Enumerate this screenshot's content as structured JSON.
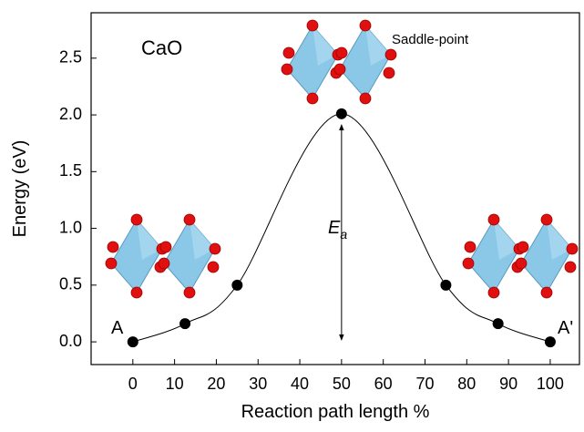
{
  "chart_data": {
    "type": "line",
    "x_label": "Reaction path length %",
    "y_label": "Energy (eV)",
    "x": [
      0,
      12.5,
      25,
      50,
      75,
      87.5,
      100
    ],
    "series": [
      {
        "color": "#000000",
        "values": [
          0,
          0.16,
          0.5,
          2.01,
          0.5,
          0.16,
          0
        ]
      }
    ],
    "xlim": [
      -10,
      107
    ],
    "ylim": [
      -0.2,
      2.9
    ],
    "xticks": [
      0,
      10,
      20,
      30,
      40,
      50,
      60,
      70,
      80,
      90,
      100
    ],
    "yticks": [
      {
        "value": 0,
        "label": "0.0"
      },
      {
        "value": 0.5,
        "label": "0.5"
      },
      {
        "value": 1,
        "label": "1.0"
      },
      {
        "value": 1.5,
        "label": "1.5"
      },
      {
        "value": 2,
        "label": "2.0"
      },
      {
        "value": 2.5,
        "label": "2.5"
      }
    ],
    "grid": false,
    "annotations": {
      "material": "CaO",
      "saddle": "Saddle-point",
      "start": "A",
      "end": "A'",
      "barrier_base": "E",
      "barrier_sub": "a"
    }
  }
}
